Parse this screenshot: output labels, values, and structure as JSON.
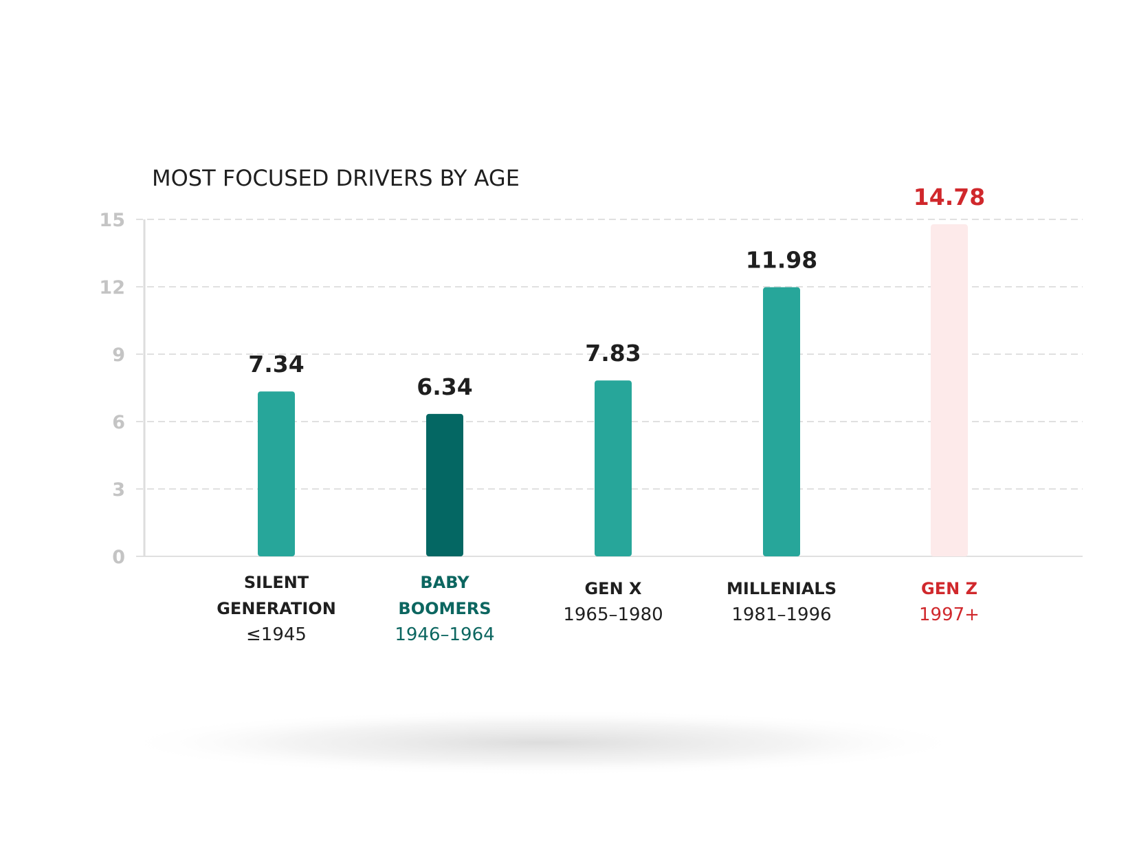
{
  "chart_data": {
    "type": "bar",
    "title": "MOST FOCUSED DRIVERS BY AGE",
    "xlabel": "",
    "ylabel": "",
    "ylim": [
      0,
      15
    ],
    "yticks": [
      "0",
      "3",
      "6",
      "9",
      "12",
      "15"
    ],
    "grid": true,
    "categories": [
      {
        "name_lines": [
          "SILENT",
          "GENERATION"
        ],
        "years": "≤1945",
        "value": 7.34,
        "value_label": "7.34",
        "bar_color": "#27a69a",
        "text_color": "#1f1f1f",
        "name_color": "#1f1f1f"
      },
      {
        "name_lines": [
          "BABY",
          "BOOMERS"
        ],
        "years": "1946–1964",
        "value": 6.34,
        "value_label": "6.34",
        "bar_color": "#046763",
        "text_color": "#1f1f1f",
        "name_color": "#0c6660"
      },
      {
        "name_lines": [
          "GEN X"
        ],
        "years": "1965–1980",
        "value": 7.83,
        "value_label": "7.83",
        "bar_color": "#27a69a",
        "text_color": "#1f1f1f",
        "name_color": "#1f1f1f"
      },
      {
        "name_lines": [
          "MILLENIALS"
        ],
        "years": "1981–1996",
        "value": 11.98,
        "value_label": "11.98",
        "bar_color": "#27a69a",
        "text_color": "#1f1f1f",
        "name_color": "#1f1f1f"
      },
      {
        "name_lines": [
          "GEN Z"
        ],
        "years": "1997+",
        "value": 14.78,
        "value_label": "14.78",
        "bar_color": "#fdeaea",
        "text_color": "#d0282c",
        "name_color": "#d0282c"
      }
    ],
    "colors": {
      "gridline": "#e0e0e0",
      "axis": "#dddddd",
      "shadow": "#d8d8d8"
    }
  }
}
